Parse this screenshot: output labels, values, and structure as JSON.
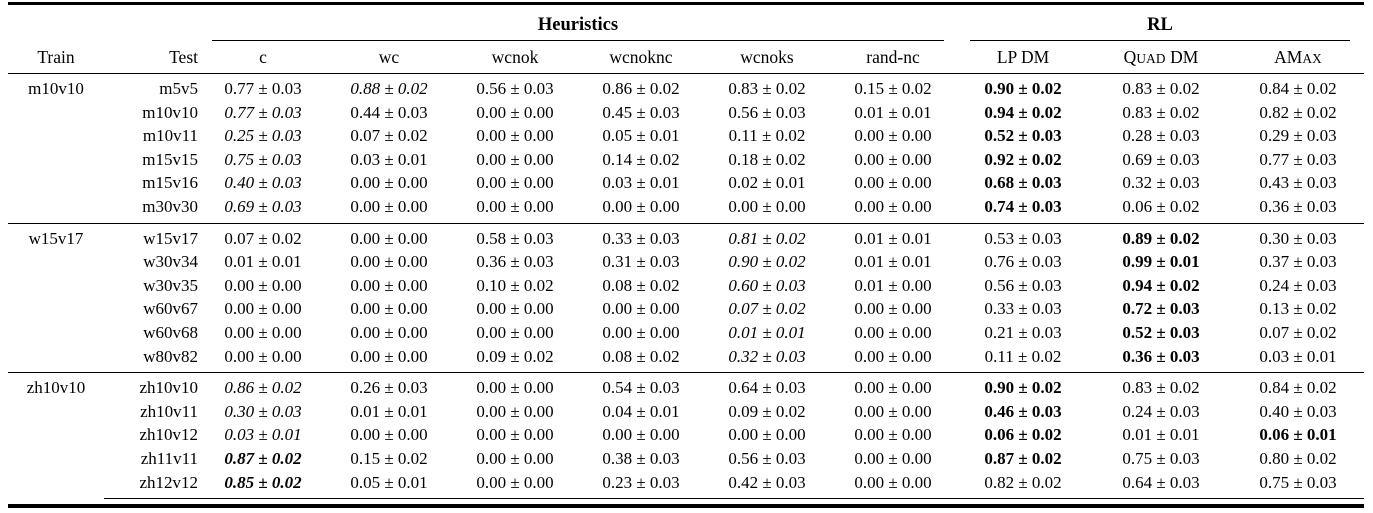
{
  "table": {
    "column_groups": [
      {
        "label": "Heuristics",
        "span": 6
      },
      {
        "label": "RL",
        "span": 3
      }
    ],
    "columns": [
      {
        "key": "train",
        "label": "Train"
      },
      {
        "key": "test",
        "label": "Test"
      },
      {
        "key": "c",
        "label": "c"
      },
      {
        "key": "wc",
        "label": "wc"
      },
      {
        "key": "wcnok",
        "label": "wcnok"
      },
      {
        "key": "wcnoknc",
        "label": "wcnoknc"
      },
      {
        "key": "wcnoks",
        "label": "wcnoks"
      },
      {
        "key": "rand-nc",
        "label": "rand-nc"
      },
      {
        "key": "lp-dm",
        "label": "LP DM",
        "parts": [
          {
            "t": "LP DM",
            "sc": false
          }
        ]
      },
      {
        "key": "quad-dm",
        "label": "Quad DM",
        "parts": [
          {
            "t": "Q",
            "sc": false
          },
          {
            "t": "uad",
            "sc": true
          },
          {
            "t": " DM",
            "sc": false
          }
        ]
      },
      {
        "key": "amax",
        "label": "AMax",
        "parts": [
          {
            "t": "AM",
            "sc": false
          },
          {
            "t": "ax",
            "sc": true
          }
        ]
      }
    ],
    "style_codes": {
      "n": "normal",
      "i": "italic",
      "b": "bold",
      "bi": "bold-italic"
    },
    "groups": [
      {
        "train": "m10v10",
        "rows": [
          {
            "test": "m5v5",
            "values": [
              [
                "0.77 ± 0.03",
                "n"
              ],
              [
                "0.88 ± 0.02",
                "i"
              ],
              [
                "0.56 ± 0.03",
                "n"
              ],
              [
                "0.86 ± 0.02",
                "n"
              ],
              [
                "0.83 ± 0.02",
                "n"
              ],
              [
                "0.15 ± 0.02",
                "n"
              ],
              [
                "0.90 ± 0.02",
                "b"
              ],
              [
                "0.83 ± 0.02",
                "n"
              ],
              [
                "0.84 ± 0.02",
                "n"
              ]
            ]
          },
          {
            "test": "m10v10",
            "values": [
              [
                "0.77 ± 0.03",
                "i"
              ],
              [
                "0.44 ± 0.03",
                "n"
              ],
              [
                "0.00 ± 0.00",
                "n"
              ],
              [
                "0.45 ± 0.03",
                "n"
              ],
              [
                "0.56 ± 0.03",
                "n"
              ],
              [
                "0.01 ± 0.01",
                "n"
              ],
              [
                "0.94 ± 0.02",
                "b"
              ],
              [
                "0.83 ± 0.02",
                "n"
              ],
              [
                "0.82 ± 0.02",
                "n"
              ]
            ]
          },
          {
            "test": "m10v11",
            "values": [
              [
                "0.25 ± 0.03",
                "i"
              ],
              [
                "0.07 ± 0.02",
                "n"
              ],
              [
                "0.00 ± 0.00",
                "n"
              ],
              [
                "0.05 ± 0.01",
                "n"
              ],
              [
                "0.11 ± 0.02",
                "n"
              ],
              [
                "0.00 ± 0.00",
                "n"
              ],
              [
                "0.52 ± 0.03",
                "b"
              ],
              [
                "0.28 ± 0.03",
                "n"
              ],
              [
                "0.29 ± 0.03",
                "n"
              ]
            ]
          },
          {
            "test": "m15v15",
            "values": [
              [
                "0.75 ± 0.03",
                "i"
              ],
              [
                "0.03 ± 0.01",
                "n"
              ],
              [
                "0.00 ± 0.00",
                "n"
              ],
              [
                "0.14 ± 0.02",
                "n"
              ],
              [
                "0.18 ± 0.02",
                "n"
              ],
              [
                "0.00 ± 0.00",
                "n"
              ],
              [
                "0.92 ± 0.02",
                "b"
              ],
              [
                "0.69 ± 0.03",
                "n"
              ],
              [
                "0.77 ± 0.03",
                "n"
              ]
            ]
          },
          {
            "test": "m15v16",
            "values": [
              [
                "0.40 ± 0.03",
                "i"
              ],
              [
                "0.00 ± 0.00",
                "n"
              ],
              [
                "0.00 ± 0.00",
                "n"
              ],
              [
                "0.03 ± 0.01",
                "n"
              ],
              [
                "0.02 ± 0.01",
                "n"
              ],
              [
                "0.00 ± 0.00",
                "n"
              ],
              [
                "0.68 ± 0.03",
                "b"
              ],
              [
                "0.32 ± 0.03",
                "n"
              ],
              [
                "0.43 ± 0.03",
                "n"
              ]
            ]
          },
          {
            "test": "m30v30",
            "values": [
              [
                "0.69 ± 0.03",
                "i"
              ],
              [
                "0.00 ± 0.00",
                "n"
              ],
              [
                "0.00 ± 0.00",
                "n"
              ],
              [
                "0.00 ± 0.00",
                "n"
              ],
              [
                "0.00 ± 0.00",
                "n"
              ],
              [
                "0.00 ± 0.00",
                "n"
              ],
              [
                "0.74 ± 0.03",
                "b"
              ],
              [
                "0.06 ± 0.02",
                "n"
              ],
              [
                "0.36 ± 0.03",
                "n"
              ]
            ]
          }
        ]
      },
      {
        "train": "w15v17",
        "rows": [
          {
            "test": "w15v17",
            "values": [
              [
                "0.07 ± 0.02",
                "n"
              ],
              [
                "0.00 ± 0.00",
                "n"
              ],
              [
                "0.58 ± 0.03",
                "n"
              ],
              [
                "0.33 ± 0.03",
                "n"
              ],
              [
                "0.81 ± 0.02",
                "i"
              ],
              [
                "0.01 ± 0.01",
                "n"
              ],
              [
                "0.53 ± 0.03",
                "n"
              ],
              [
                "0.89 ± 0.02",
                "b"
              ],
              [
                "0.30 ± 0.03",
                "n"
              ]
            ]
          },
          {
            "test": "w30v34",
            "values": [
              [
                "0.01 ± 0.01",
                "n"
              ],
              [
                "0.00 ± 0.00",
                "n"
              ],
              [
                "0.36 ± 0.03",
                "n"
              ],
              [
                "0.31 ± 0.03",
                "n"
              ],
              [
                "0.90 ± 0.02",
                "i"
              ],
              [
                "0.01 ± 0.01",
                "n"
              ],
              [
                "0.76 ± 0.03",
                "n"
              ],
              [
                "0.99 ± 0.01",
                "b"
              ],
              [
                "0.37 ± 0.03",
                "n"
              ]
            ]
          },
          {
            "test": "w30v35",
            "values": [
              [
                "0.00 ± 0.00",
                "n"
              ],
              [
                "0.00 ± 0.00",
                "n"
              ],
              [
                "0.10 ± 0.02",
                "n"
              ],
              [
                "0.08 ± 0.02",
                "n"
              ],
              [
                "0.60 ± 0.03",
                "i"
              ],
              [
                "0.01 ± 0.00",
                "n"
              ],
              [
                "0.56 ± 0.03",
                "n"
              ],
              [
                "0.94 ± 0.02",
                "b"
              ],
              [
                "0.24 ± 0.03",
                "n"
              ]
            ]
          },
          {
            "test": "w60v67",
            "values": [
              [
                "0.00 ± 0.00",
                "n"
              ],
              [
                "0.00 ± 0.00",
                "n"
              ],
              [
                "0.00 ± 0.00",
                "n"
              ],
              [
                "0.00 ± 0.00",
                "n"
              ],
              [
                "0.07 ± 0.02",
                "i"
              ],
              [
                "0.00 ± 0.00",
                "n"
              ],
              [
                "0.33 ± 0.03",
                "n"
              ],
              [
                "0.72 ± 0.03",
                "b"
              ],
              [
                "0.13 ± 0.02",
                "n"
              ]
            ]
          },
          {
            "test": "w60v68",
            "values": [
              [
                "0.00 ± 0.00",
                "n"
              ],
              [
                "0.00 ± 0.00",
                "n"
              ],
              [
                "0.00 ± 0.00",
                "n"
              ],
              [
                "0.00 ± 0.00",
                "n"
              ],
              [
                "0.01 ± 0.01",
                "i"
              ],
              [
                "0.00 ± 0.00",
                "n"
              ],
              [
                "0.21 ± 0.03",
                "n"
              ],
              [
                "0.52 ± 0.03",
                "b"
              ],
              [
                "0.07 ± 0.02",
                "n"
              ]
            ]
          },
          {
            "test": "w80v82",
            "values": [
              [
                "0.00 ± 0.00",
                "n"
              ],
              [
                "0.00 ± 0.00",
                "n"
              ],
              [
                "0.09 ± 0.02",
                "n"
              ],
              [
                "0.08 ± 0.02",
                "n"
              ],
              [
                "0.32 ± 0.03",
                "i"
              ],
              [
                "0.00 ± 0.00",
                "n"
              ],
              [
                "0.11 ± 0.02",
                "n"
              ],
              [
                "0.36 ± 0.03",
                "b"
              ],
              [
                "0.03 ± 0.01",
                "n"
              ]
            ]
          }
        ]
      },
      {
        "train": "zh10v10",
        "rows": [
          {
            "test": "zh10v10",
            "values": [
              [
                "0.86 ± 0.02",
                "i"
              ],
              [
                "0.26 ± 0.03",
                "n"
              ],
              [
                "0.00 ± 0.00",
                "n"
              ],
              [
                "0.54 ± 0.03",
                "n"
              ],
              [
                "0.64 ± 0.03",
                "n"
              ],
              [
                "0.00 ± 0.00",
                "n"
              ],
              [
                "0.90 ± 0.02",
                "b"
              ],
              [
                "0.83 ± 0.02",
                "n"
              ],
              [
                "0.84 ± 0.02",
                "n"
              ]
            ]
          },
          {
            "test": "zh10v11",
            "values": [
              [
                "0.30 ± 0.03",
                "i"
              ],
              [
                "0.01 ± 0.01",
                "n"
              ],
              [
                "0.00 ± 0.00",
                "n"
              ],
              [
                "0.04 ± 0.01",
                "n"
              ],
              [
                "0.09 ± 0.02",
                "n"
              ],
              [
                "0.00 ± 0.00",
                "n"
              ],
              [
                "0.46 ± 0.03",
                "b"
              ],
              [
                "0.24 ± 0.03",
                "n"
              ],
              [
                "0.40 ± 0.03",
                "n"
              ]
            ]
          },
          {
            "test": "zh10v12",
            "values": [
              [
                "0.03 ± 0.01",
                "i"
              ],
              [
                "0.00 ± 0.00",
                "n"
              ],
              [
                "0.00 ± 0.00",
                "n"
              ],
              [
                "0.00 ± 0.00",
                "n"
              ],
              [
                "0.00 ± 0.00",
                "n"
              ],
              [
                "0.00 ± 0.00",
                "n"
              ],
              [
                "0.06 ± 0.02",
                "b"
              ],
              [
                "0.01 ± 0.01",
                "n"
              ],
              [
                "0.06 ± 0.01",
                "b"
              ]
            ]
          },
          {
            "test": "zh11v11",
            "values": [
              [
                "0.87 ± 0.02",
                "bi"
              ],
              [
                "0.15 ± 0.02",
                "n"
              ],
              [
                "0.00 ± 0.00",
                "n"
              ],
              [
                "0.38 ± 0.03",
                "n"
              ],
              [
                "0.56 ± 0.03",
                "n"
              ],
              [
                "0.00 ± 0.00",
                "n"
              ],
              [
                "0.87 ± 0.02",
                "b"
              ],
              [
                "0.75 ± 0.03",
                "n"
              ],
              [
                "0.80 ± 0.02",
                "n"
              ]
            ]
          },
          {
            "test": "zh12v12",
            "values": [
              [
                "0.85 ± 0.02",
                "bi"
              ],
              [
                "0.05 ± 0.01",
                "n"
              ],
              [
                "0.00 ± 0.00",
                "n"
              ],
              [
                "0.23 ± 0.03",
                "n"
              ],
              [
                "0.42 ± 0.03",
                "n"
              ],
              [
                "0.00 ± 0.00",
                "n"
              ],
              [
                "0.82 ± 0.02",
                "n"
              ],
              [
                "0.64 ± 0.03",
                "n"
              ],
              [
                "0.75 ± 0.03",
                "n"
              ]
            ]
          }
        ]
      }
    ]
  }
}
